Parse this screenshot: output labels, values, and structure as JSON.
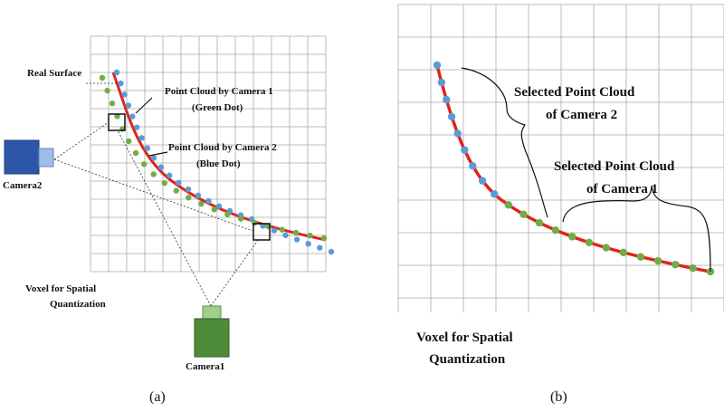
{
  "panel_a": {
    "label": "(a)",
    "real_surface": "Real Surface",
    "camera1_cloud": [
      "Point Cloud by Camera 1",
      "(Green Dot)"
    ],
    "camera2_cloud": [
      "Point Cloud by Camera 2",
      "(Blue Dot)"
    ],
    "camera2": "Camera2",
    "camera1": "Camera1",
    "voxel": [
      "Voxel for Spatial",
      "Quantization"
    ]
  },
  "panel_b": {
    "label": "(b)",
    "selected_camera2": [
      "Selected Point Cloud",
      "of Camera 2"
    ],
    "selected_camera1": [
      "Selected Point Cloud",
      "of Camera 1"
    ],
    "voxel": [
      "Voxel for Spatial",
      "Quantization"
    ]
  }
}
